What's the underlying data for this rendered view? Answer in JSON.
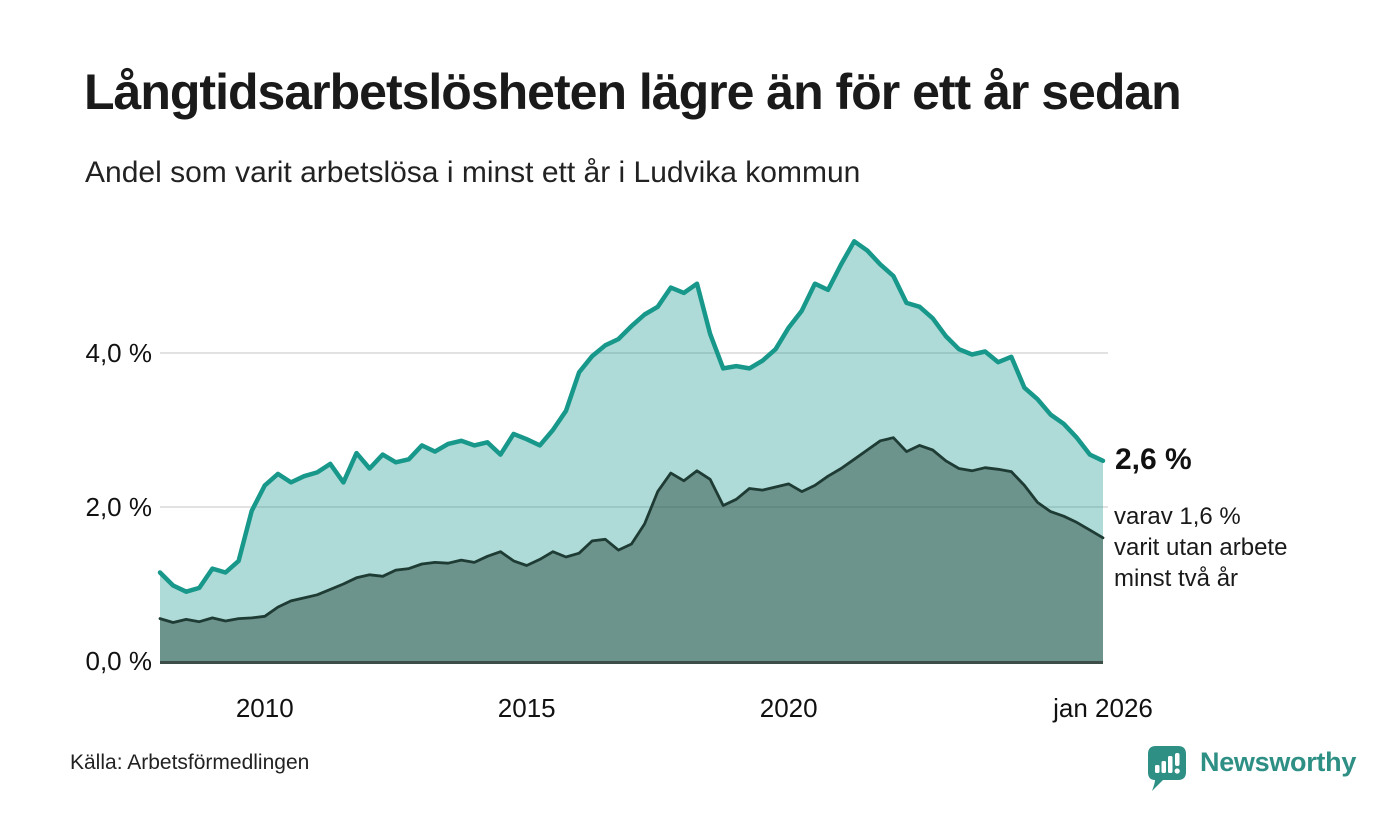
{
  "header": {
    "title": "Långtidsarbetslösheten lägre än för ett år sedan",
    "subtitle": "Andel som varit arbetslösa i minst ett år i Ludvika kommun"
  },
  "annotation": {
    "value": "2,6 %",
    "detail": "varav 1,6 %\nvarit utan arbete\nminst två år"
  },
  "footer": {
    "source": "Källa: Arbetsförmedlingen",
    "brand": "Newsworthy"
  },
  "colors": {
    "line_total": "#18988b",
    "fill_total": "rgba(24,152,139,0.35)",
    "line_two_years": "#1e3b34",
    "fill_two_years": "rgba(30,59,52,0.45)",
    "gridline": "#e2e2e2",
    "baseline": "#3d4e48",
    "brand_teal": "#2e8f85",
    "text": "#1a1a1a"
  },
  "chart_data": {
    "type": "area",
    "title": "Långtidsarbetslösheten lägre än för ett år sedan",
    "subtitle": "Andel som varit arbetslösa i minst ett år i Ludvika kommun",
    "xlabel": "",
    "ylabel": "",
    "x_unit": "year (decimal, monthly data Jan 2008 - Jan 2026)",
    "y_unit": "percent",
    "ylim": [
      0,
      5.6
    ],
    "grid": "horizontal",
    "legend_position": "none",
    "x": [
      2008.0,
      2008.25,
      2008.5,
      2008.75,
      2009.0,
      2009.25,
      2009.5,
      2009.75,
      2010.0,
      2010.25,
      2010.5,
      2010.75,
      2011.0,
      2011.25,
      2011.5,
      2011.75,
      2012.0,
      2012.25,
      2012.5,
      2012.75,
      2013.0,
      2013.25,
      2013.5,
      2013.75,
      2014.0,
      2014.25,
      2014.5,
      2014.75,
      2015.0,
      2015.25,
      2015.5,
      2015.75,
      2016.0,
      2016.25,
      2016.5,
      2016.75,
      2017.0,
      2017.25,
      2017.5,
      2017.75,
      2018.0,
      2018.25,
      2018.5,
      2018.75,
      2019.0,
      2019.25,
      2019.5,
      2019.75,
      2020.0,
      2020.25,
      2020.5,
      2020.75,
      2021.0,
      2021.25,
      2021.5,
      2021.75,
      2022.0,
      2022.25,
      2022.5,
      2022.75,
      2023.0,
      2023.25,
      2023.5,
      2023.75,
      2024.0,
      2024.25,
      2024.5,
      2024.75,
      2025.0,
      2025.25,
      2025.5,
      2025.75,
      2026.0
    ],
    "series": [
      {
        "name": "Arbetslösa minst ett år (totalt)",
        "end_label": "2,6 %",
        "values": [
          1.15,
          0.98,
          0.9,
          0.95,
          1.2,
          1.15,
          1.3,
          1.95,
          2.28,
          2.43,
          2.32,
          2.4,
          2.45,
          2.56,
          2.32,
          2.7,
          2.5,
          2.68,
          2.58,
          2.62,
          2.8,
          2.72,
          2.82,
          2.86,
          2.8,
          2.84,
          2.68,
          2.95,
          2.88,
          2.8,
          3.0,
          3.25,
          3.75,
          3.96,
          4.1,
          4.18,
          4.35,
          4.5,
          4.6,
          4.85,
          4.78,
          4.9,
          4.25,
          3.8,
          3.83,
          3.8,
          3.9,
          4.05,
          4.33,
          4.55,
          4.9,
          4.82,
          5.15,
          5.45,
          5.33,
          5.15,
          5.0,
          4.65,
          4.6,
          4.45,
          4.22,
          4.05,
          3.98,
          4.02,
          3.88,
          3.95,
          3.55,
          3.4,
          3.2,
          3.08,
          2.9,
          2.68,
          2.6
        ]
      },
      {
        "name": "varav utan arbete minst två år",
        "end_label": "1,6 %",
        "values": [
          0.55,
          0.5,
          0.54,
          0.51,
          0.56,
          0.52,
          0.55,
          0.56,
          0.58,
          0.7,
          0.78,
          0.82,
          0.86,
          0.93,
          1.0,
          1.08,
          1.12,
          1.1,
          1.18,
          1.2,
          1.26,
          1.28,
          1.27,
          1.31,
          1.28,
          1.36,
          1.42,
          1.3,
          1.24,
          1.32,
          1.42,
          1.35,
          1.4,
          1.56,
          1.58,
          1.44,
          1.52,
          1.78,
          2.2,
          2.44,
          2.34,
          2.47,
          2.36,
          2.02,
          2.1,
          2.24,
          2.22,
          2.26,
          2.3,
          2.2,
          2.28,
          2.4,
          2.5,
          2.62,
          2.74,
          2.86,
          2.9,
          2.72,
          2.8,
          2.74,
          2.6,
          2.5,
          2.47,
          2.51,
          2.49,
          2.46,
          2.28,
          2.06,
          1.94,
          1.88,
          1.8,
          1.7,
          1.6
        ]
      }
    ],
    "yticks": [
      {
        "value": 0,
        "label": "0,0 %"
      },
      {
        "value": 2,
        "label": "2,0 %"
      },
      {
        "value": 4,
        "label": "4,0 %"
      }
    ],
    "xticks": [
      {
        "value": 2010,
        "label": "2010"
      },
      {
        "value": 2015,
        "label": "2015"
      },
      {
        "value": 2020,
        "label": "2020"
      },
      {
        "value": 2026,
        "label": "jan 2026"
      }
    ]
  }
}
